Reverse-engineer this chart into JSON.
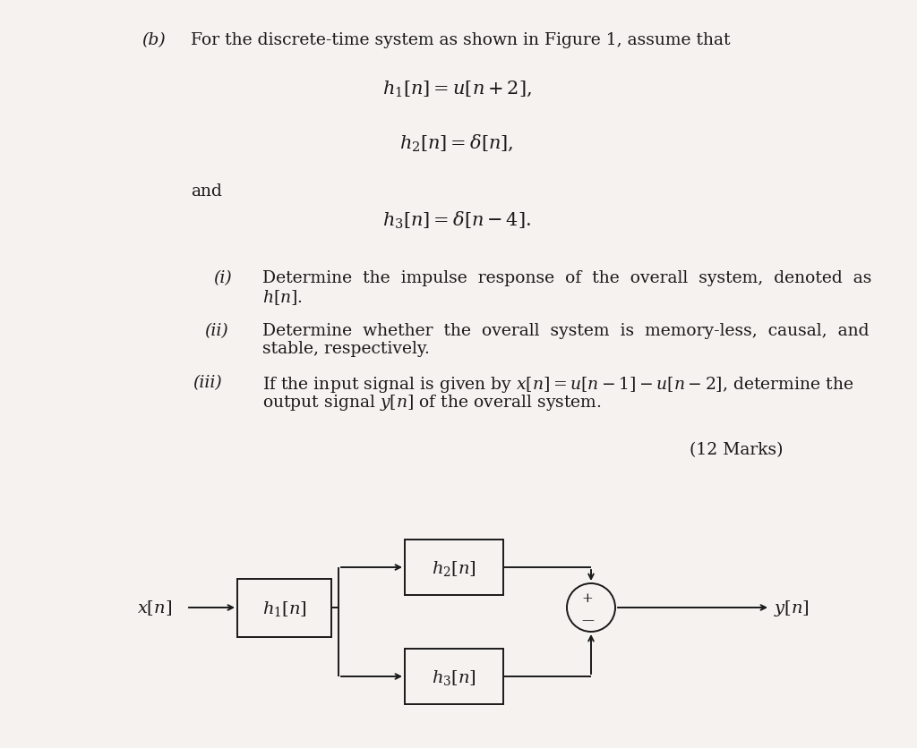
{
  "bg_color": "#f5f2ef",
  "text_color": "#1a1a1a",
  "line_color": "#1a1a1a",
  "title_b": "(b)",
  "title_text": "For the discrete-time system as shown in Figure 1, assume that",
  "eq1": "$h_1[n]=u[n+2],$",
  "eq2": "$h_2[n]=\\delta[n],$",
  "eq3": "$h_3[n]=\\delta[n-4].$",
  "and_text": "and",
  "item_i_label": "(i)",
  "item_i_text1": "Determine  the  impulse  response  of  the  overall  system,  denoted  as",
  "item_i_text2": "$h[n]$.",
  "item_ii_label": "(ii)",
  "item_ii_text1": "Determine  whether  the  overall  system  is  memory-less,  causal,  and",
  "item_ii_text2": "stable, respectively.",
  "item_iii_label": "(iii)",
  "item_iii_text1": "If the input signal is given by $x[n]=u[n-1]-u[n-2]$, determine the",
  "item_iii_text2": "output signal $y[n]$ of the overall system.",
  "marks": "(12 Marks)",
  "xn_label": "$x[n]$",
  "yn_label": "$y[n]$",
  "h1_label": "$h_1[n]$",
  "h2_label": "$h_2[n]$",
  "h3_label": "$h_3[n]$",
  "plus_sign": "+",
  "minus_sign": "—"
}
